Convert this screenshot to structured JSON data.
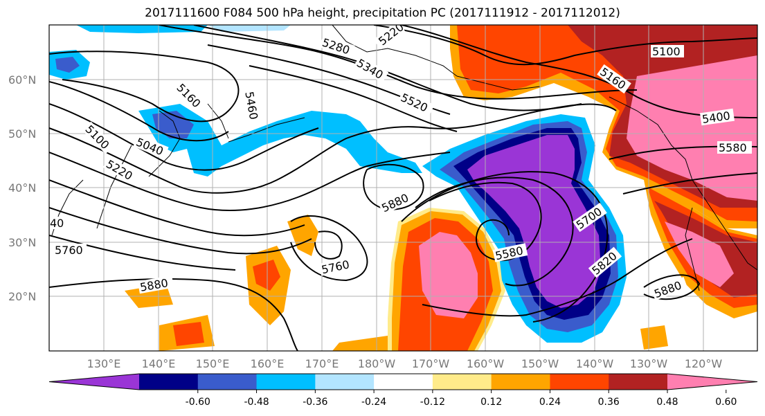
{
  "title": "2017111600 F084 500 hPa height, precipitation PC (2017111912 - 2017112012)",
  "axes": {
    "lat_labels": [
      "60°N",
      "50°N",
      "40°N",
      "30°N",
      "20°N"
    ],
    "lon_labels": [
      "130°E",
      "140°E",
      "150°E",
      "160°E",
      "170°E",
      "180°W",
      "170°W",
      "160°W",
      "150°W",
      "140°W",
      "130°W",
      "120°W"
    ]
  },
  "colorbar": {
    "colors": [
      "#9a35d6",
      "#000087",
      "#3a5ccc",
      "#00bfff",
      "#b3e5ff",
      "#ffffff",
      "#ffeb8a",
      "#ffa500",
      "#ff4500",
      "#b22222",
      "#ff7fb0"
    ],
    "tick_labels": [
      "-0.60",
      "-0.48",
      "-0.36",
      "-0.24",
      "-0.12",
      "0.12",
      "0.24",
      "0.36",
      "0.48",
      "0.60"
    ]
  },
  "contour_labels": [
    "5220",
    "5280",
    "5340",
    "5160",
    "5100",
    "5520",
    "5460",
    "5160",
    "5100",
    "5040",
    "5220",
    "5400",
    "5580",
    "5880",
    "5760",
    "5760",
    "5880",
    "5580",
    "5700",
    "5820",
    "5880",
    "40"
  ]
}
